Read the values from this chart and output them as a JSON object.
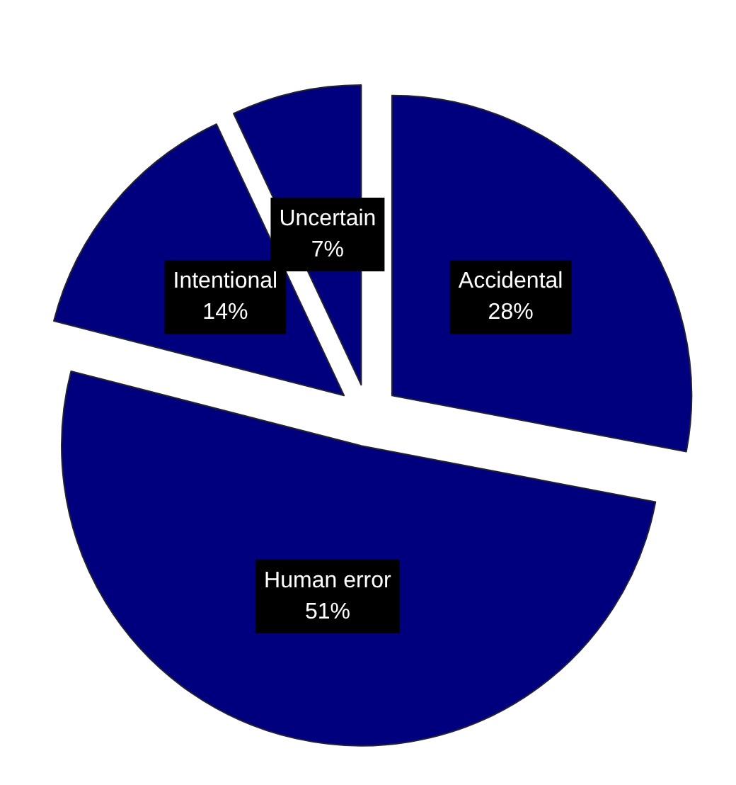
{
  "chart_data": {
    "type": "pie",
    "categories": [
      "Accidental",
      "Human error",
      "Intentional",
      "Uncertain"
    ],
    "values": [
      28,
      51,
      14,
      7
    ],
    "colors": [
      "#00007f",
      "#00007f",
      "#00007f",
      "#00007f"
    ],
    "value_labels": [
      "28%",
      "51%",
      "14%",
      "7%"
    ]
  }
}
